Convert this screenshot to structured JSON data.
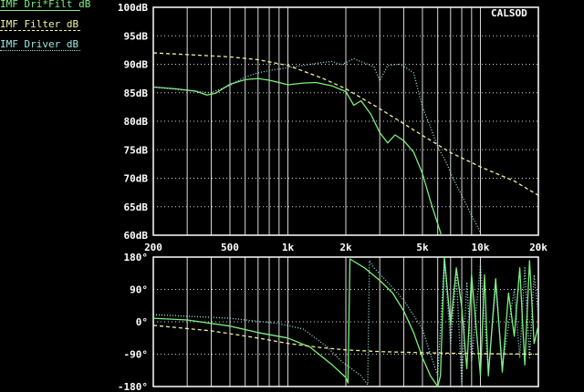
{
  "chart_data": [
    {
      "type": "line",
      "title": "CALSOD",
      "x_scale": "log",
      "xlim": [
        200,
        20000
      ],
      "ylim": [
        60,
        100
      ],
      "x_ticks": [
        {
          "value": 200,
          "label": "200"
        },
        {
          "value": 500,
          "label": "500"
        },
        {
          "value": 1000,
          "label": "1k"
        },
        {
          "value": 2000,
          "label": "2k"
        },
        {
          "value": 5000,
          "label": "5k"
        },
        {
          "value": 10000,
          "label": "10k"
        },
        {
          "value": 20000,
          "label": "20k"
        }
      ],
      "y_ticks": [
        {
          "value": 100,
          "label": "100dB"
        },
        {
          "value": 95,
          "label": "95dB"
        },
        {
          "value": 90,
          "label": "90dB"
        },
        {
          "value": 85,
          "label": "85dB"
        },
        {
          "value": 80,
          "label": "80dB"
        },
        {
          "value": 75,
          "label": "75dB"
        },
        {
          "value": 70,
          "label": "70dB"
        },
        {
          "value": 65,
          "label": "65dB"
        },
        {
          "value": 60,
          "label": "60dB"
        }
      ],
      "grid": true,
      "series": [
        {
          "name": "IMF Dri*Filt dB",
          "color": "#7cf07c",
          "style": "solid",
          "x": [
            200,
            260,
            330,
            380,
            420,
            500,
            600,
            700,
            800,
            900,
            1000,
            1200,
            1400,
            1700,
            2000,
            2200,
            2400,
            2700,
            3000,
            3300,
            3600,
            4000,
            4500,
            5000,
            5500,
            6200,
            6500
          ],
          "y": [
            86,
            85.7,
            85.3,
            84.6,
            84.9,
            86.5,
            87.3,
            87.5,
            87.2,
            86.8,
            86.4,
            86.7,
            86.8,
            86.2,
            85.2,
            82.8,
            83.6,
            81.2,
            78,
            76.2,
            77.6,
            76.6,
            74.6,
            70.8,
            66,
            60.5,
            57
          ]
        },
        {
          "name": "IMF Filter dB",
          "color": "#f2f2a0",
          "style": "dashed",
          "x": [
            200,
            300,
            500,
            700,
            1000,
            1500,
            2000,
            3000,
            5000,
            7000,
            10000,
            15000,
            20000
          ],
          "y": [
            92,
            91.7,
            91.3,
            90.8,
            89.8,
            87.6,
            85.7,
            82.2,
            77.5,
            74.5,
            72,
            69.5,
            67
          ]
        },
        {
          "name": "IMF Driver dB",
          "color": "#9fe6e6",
          "style": "dotted",
          "x": [
            200,
            300,
            400,
            500,
            600,
            700,
            800,
            1000,
            1200,
            1500,
            1700,
            1900,
            2200,
            2500,
            2800,
            3000,
            3300,
            3800,
            4200,
            4500,
            5000,
            5500,
            6000,
            6600,
            7200,
            8000,
            9000,
            10000
          ],
          "y": [
            86,
            85.4,
            85,
            86.3,
            87.8,
            88.5,
            88.9,
            89.4,
            89.8,
            90.3,
            90.5,
            89.9,
            91,
            90.2,
            89.6,
            87.1,
            89.8,
            90,
            89.2,
            88.5,
            82.5,
            79,
            75.5,
            73,
            70,
            67,
            63.5,
            60.5
          ]
        }
      ]
    },
    {
      "type": "line",
      "x_scale": "log",
      "xlim": [
        200,
        20000
      ],
      "ylim": [
        -180,
        180
      ],
      "y_ticks": [
        {
          "value": 180,
          "label": "180°"
        },
        {
          "value": 90,
          "label": "90°"
        },
        {
          "value": 0,
          "label": "0°"
        },
        {
          "value": -90,
          "label": "-90°"
        },
        {
          "value": -180,
          "label": "-180°"
        }
      ],
      "grid": true,
      "series": [
        {
          "name": "IMF Dri*Filt dB",
          "color": "#7cf07c",
          "style": "solid",
          "x": [
            200,
            300,
            500,
            700,
            1000,
            1300,
            1700,
            2000,
            2050,
            2100,
            2500,
            3000,
            3500,
            4000,
            4500,
            5000,
            5500,
            6000,
            6200,
            6500,
            7000,
            7500,
            8000,
            8500,
            9000,
            10000,
            10500,
            11000,
            12000,
            13000,
            14000,
            15000,
            16000,
            17000,
            18000,
            19000,
            20000
          ],
          "y": [
            10,
            5,
            -12,
            -30,
            -45,
            -70,
            -120,
            -155,
            -170,
            175,
            150,
            115,
            80,
            30,
            -30,
            -100,
            -150,
            -180,
            -150,
            180,
            -10,
            150,
            40,
            -130,
            130,
            -150,
            130,
            -150,
            120,
            -140,
            80,
            -40,
            150,
            -120,
            170,
            -60,
            -10
          ]
        },
        {
          "name": "IMF Filter dB",
          "color": "#f2f2a0",
          "style": "dashed",
          "x": [
            200,
            400,
            700,
            1000,
            1500,
            2000,
            3000,
            5000,
            8000,
            12000,
            20000
          ],
          "y": [
            -10,
            -25,
            -45,
            -60,
            -72,
            -78,
            -83,
            -86,
            -88,
            -89,
            -90
          ]
        },
        {
          "name": "IMF Driver dB",
          "color": "#9fe6e6",
          "style": "dotted",
          "x": [
            200,
            500,
            900,
            1200,
            1600,
            1900,
            2400,
            2600,
            2650,
            2800,
            3300,
            4000,
            5000,
            5500,
            6000,
            6500,
            7000,
            7500,
            8000,
            8500,
            9000,
            10000,
            11000,
            12000,
            13000,
            15000,
            16000,
            17000,
            18000,
            19000,
            20000
          ],
          "y": [
            20,
            10,
            -5,
            -20,
            -70,
            -110,
            -150,
            -175,
            170,
            150,
            110,
            60,
            -20,
            -90,
            -150,
            170,
            -60,
            130,
            -170,
            110,
            -110,
            160,
            -140,
            100,
            -120,
            90,
            -100,
            150,
            -100,
            130,
            20
          ]
        }
      ]
    }
  ]
}
